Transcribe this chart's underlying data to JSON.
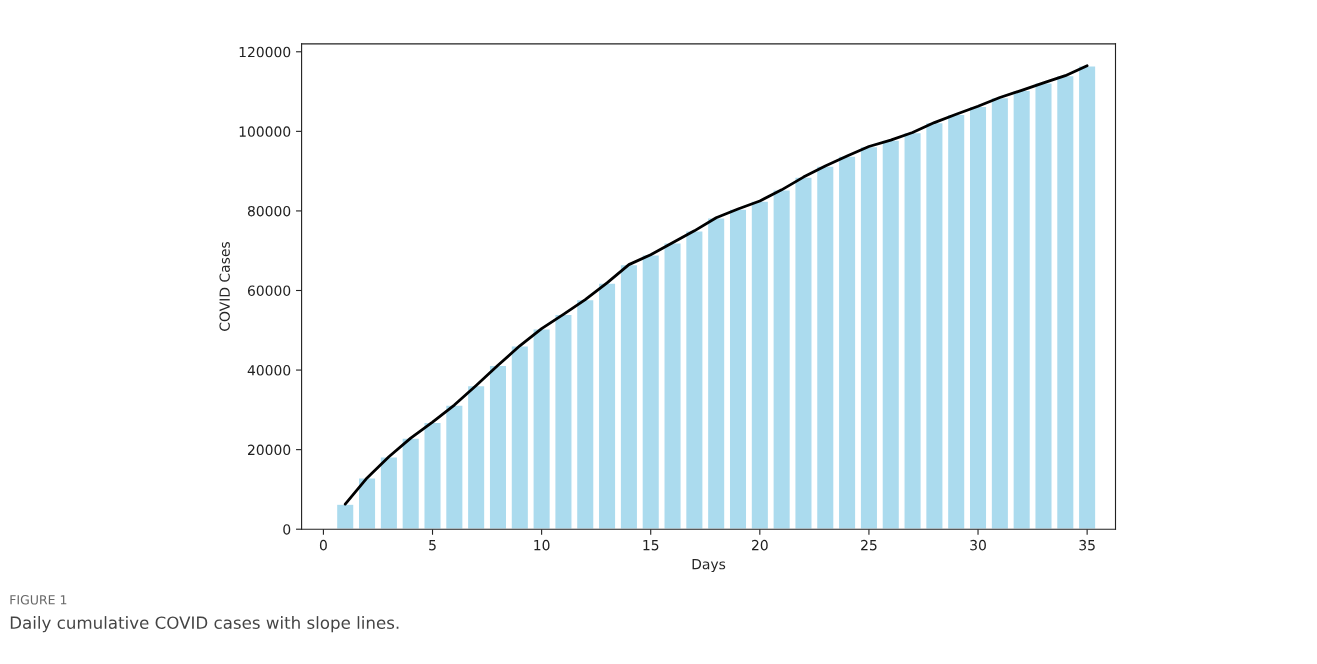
{
  "chart_data": {
    "type": "bar",
    "xlabel": "Days",
    "ylabel": "COVID Cases",
    "x": [
      1,
      2,
      3,
      4,
      5,
      6,
      7,
      8,
      9,
      10,
      11,
      12,
      13,
      14,
      15,
      16,
      17,
      18,
      19,
      20,
      21,
      22,
      23,
      24,
      25,
      26,
      27,
      28,
      29,
      30,
      31,
      32,
      33,
      34,
      35
    ],
    "series": [
      {
        "color": "#abdbee",
        "values": [
          6300,
          12900,
          18200,
          22900,
          26900,
          31200,
          36100,
          41200,
          46100,
          50400,
          54000,
          57700,
          61900,
          66500,
          69000,
          72000,
          75000,
          78300,
          80500,
          82500,
          85300,
          88500,
          91300,
          93800,
          96200,
          97800,
          99700,
          102200,
          104300,
          106300,
          108500,
          110300,
          112200,
          114000,
          116500
        ]
      },
      {
        "type": "line",
        "color": "#000000",
        "values": [
          6300,
          12900,
          18200,
          22900,
          26900,
          31200,
          36100,
          41200,
          46100,
          50400,
          54000,
          57700,
          61900,
          66500,
          69000,
          72000,
          75000,
          78300,
          80500,
          82500,
          85300,
          88500,
          91300,
          93800,
          96200,
          97800,
          99700,
          102200,
          104300,
          106300,
          108500,
          110300,
          112200,
          114000,
          116500
        ]
      }
    ],
    "xlim": [
      -1.0,
      36.3
    ],
    "xticks": [
      0,
      5,
      10,
      15,
      20,
      25,
      30,
      35
    ],
    "ylim": [
      0,
      122000
    ],
    "yticks": [
      0,
      20000,
      40000,
      60000,
      80000,
      100000,
      120000
    ],
    "grid": false,
    "legend": false,
    "annotations": [
      "FIGURE 1",
      "Daily cumulative COVID cases with slope lines."
    ]
  }
}
